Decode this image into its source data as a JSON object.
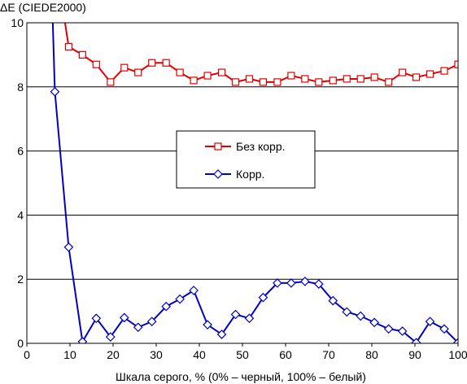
{
  "chart_data": {
    "type": "line",
    "title": "ΔE (CIEDE2000)",
    "xlabel": "Шкала серого, % (0% – черный, 100% – белый)",
    "ylabel": "",
    "xlim": [
      0,
      100
    ],
    "ylim": [
      0,
      10
    ],
    "x_ticks": [
      "0",
      "10",
      "20",
      "30",
      "40",
      "50",
      "60",
      "70",
      "80",
      "90",
      "100"
    ],
    "y_ticks": [
      "0",
      "2",
      "4",
      "6",
      "8",
      "10"
    ],
    "grid": "horizontal",
    "legend_position": "center",
    "series": [
      {
        "name": "Без корр.",
        "color": "#e00000",
        "marker": "square",
        "x": [
          9.7,
          12.9,
          16.1,
          19.4,
          22.6,
          25.8,
          29.0,
          32.3,
          35.5,
          38.7,
          41.9,
          45.2,
          48.4,
          51.6,
          54.8,
          58.1,
          61.3,
          64.5,
          67.7,
          71.0,
          74.2,
          77.4,
          80.6,
          83.9,
          87.1,
          90.3,
          93.5,
          96.8,
          100.0
        ],
        "y": [
          9.25,
          9.0,
          8.7,
          8.15,
          8.6,
          8.45,
          8.75,
          8.75,
          8.45,
          8.2,
          8.35,
          8.45,
          8.15,
          8.25,
          8.15,
          8.15,
          8.35,
          8.25,
          8.15,
          8.2,
          8.25,
          8.25,
          8.3,
          8.15,
          8.45,
          8.3,
          8.4,
          8.5,
          8.7
        ],
        "lead_in": {
          "x": [
            8.3,
            9.7
          ],
          "y": [
            10.5,
            9.25
          ]
        }
      },
      {
        "name": "Корр.",
        "color": "#0000c8",
        "marker": "diamond",
        "x": [
          6.5,
          9.7,
          12.9,
          16.1,
          19.4,
          22.6,
          25.8,
          29.0,
          32.3,
          35.5,
          38.7,
          41.9,
          45.2,
          48.4,
          51.6,
          54.8,
          58.1,
          61.3,
          64.5,
          67.7,
          71.0,
          74.2,
          77.4,
          80.6,
          83.9,
          87.1,
          90.3,
          93.5,
          96.8,
          100.0
        ],
        "y": [
          7.85,
          3.0,
          0.05,
          0.78,
          0.2,
          0.8,
          0.5,
          0.68,
          1.15,
          1.38,
          1.65,
          0.58,
          0.28,
          0.9,
          0.78,
          1.43,
          1.88,
          1.88,
          1.93,
          1.85,
          1.33,
          0.98,
          0.85,
          0.65,
          0.45,
          0.38,
          0.02,
          0.68,
          0.45,
          0.02
        ],
        "lead_in": {
          "x": [
            5.9,
            6.5
          ],
          "y": [
            10.5,
            7.85
          ]
        }
      }
    ]
  }
}
